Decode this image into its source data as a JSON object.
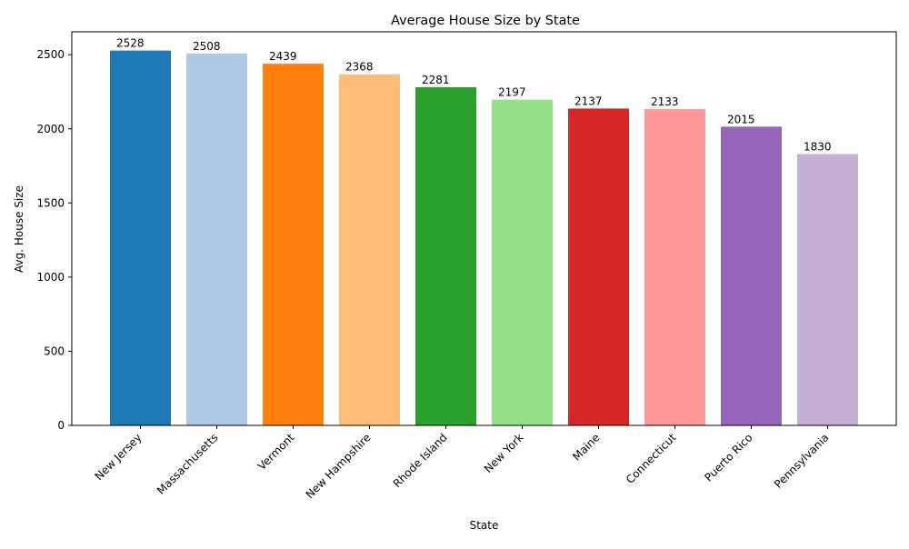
{
  "chart_data": {
    "type": "bar",
    "title": "Average House Size by State",
    "xlabel": "State",
    "ylabel": "Avg. House Size",
    "categories": [
      "New Jersey",
      "Massachusetts",
      "Vermont",
      "New Hampshire",
      "Rhode Island",
      "New York",
      "Maine",
      "Connecticut",
      "Puerto Rico",
      "Pennsylvania"
    ],
    "values": [
      2528,
      2508,
      2439,
      2368,
      2281,
      2197,
      2137,
      2133,
      2015,
      1830
    ],
    "colors": [
      "#1f77b4",
      "#aec7e8",
      "#ff7f0e",
      "#ffbb78",
      "#2ca02c",
      "#98df8a",
      "#d62728",
      "#ff9896",
      "#9467bd",
      "#c5b0d5"
    ],
    "ylim": [
      0,
      2654.4
    ],
    "yticks": [
      0,
      500,
      1000,
      1500,
      2000,
      2500
    ],
    "grid": false,
    "legend": false,
    "data_labels": true
  }
}
